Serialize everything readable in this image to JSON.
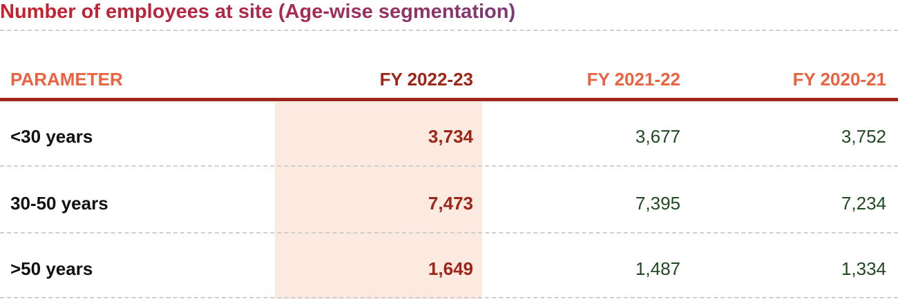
{
  "header": {
    "title": "Number of employees at site (Age-wise segmentation)"
  },
  "table": {
    "columns": [
      "PARAMETER",
      "FY 2022-23",
      "FY 2021-22",
      "FY 2020-21"
    ],
    "rows": [
      [
        "<30 years",
        "3,734",
        "3,677",
        "3,752"
      ],
      [
        "30-50 years",
        "7,473",
        "7,395",
        "7,234"
      ],
      [
        ">50 years",
        "1,649",
        "1,487",
        "1,334"
      ]
    ]
  }
}
